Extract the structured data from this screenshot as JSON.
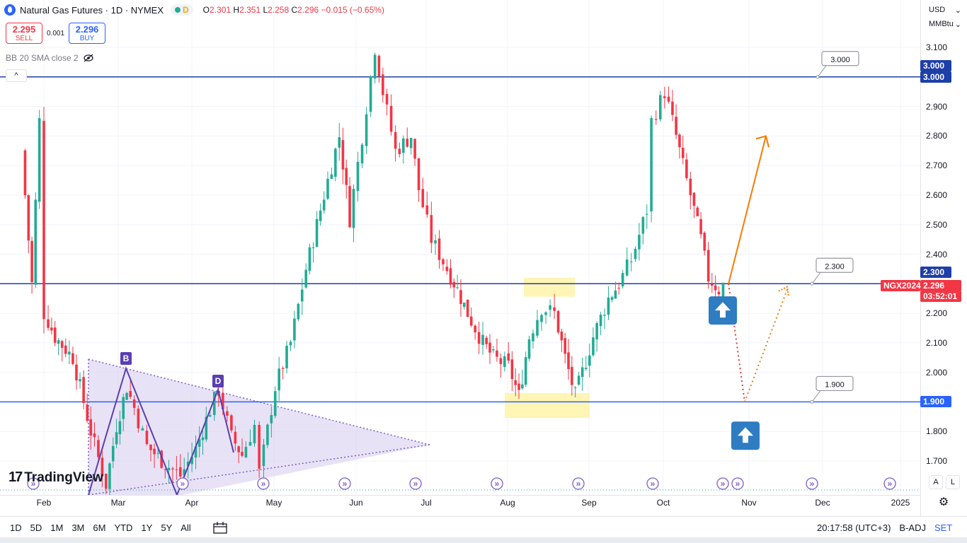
{
  "header": {
    "title": "Natural Gas Futures · 1D · NYMEX",
    "session_letter": "D",
    "ohlc": {
      "o_label": "O",
      "o": "2.301",
      "h_label": "H",
      "h": "2.351",
      "l_label": "L",
      "l": "2.258",
      "c_label": "C",
      "c": "2.296",
      "change": "−0.015 (−0.65%)"
    }
  },
  "trade": {
    "sell_price": "2.295",
    "sell_label": "SELL",
    "spread": "0.001",
    "buy_price": "2.296",
    "buy_label": "BUY"
  },
  "indicator": {
    "label": "BB 20 SMA close 2"
  },
  "collapse_label": "^",
  "logo": {
    "mark": "17",
    "text": "TradingView"
  },
  "right_panel": {
    "currency": "USD",
    "unit": "MMBtu"
  },
  "price_scale": {
    "ticks": [
      "3.100",
      "3.000",
      "2.900",
      "2.800",
      "2.700",
      "2.600",
      "2.500",
      "2.400",
      "2.300",
      "2.200",
      "2.100",
      "2.000",
      "1.900",
      "1.800",
      "1.700"
    ],
    "tag_3000": "3.000",
    "tag_3000b": "3.000",
    "tag_2300": "2.300",
    "tag_price": "2.296",
    "tag_time": "03:52:01",
    "tag_symbol": "NGX2024",
    "tag_1900": "1.900"
  },
  "time_axis": [
    "Feb",
    "Mar",
    "Apr",
    "May",
    "Jun",
    "Jul",
    "Aug",
    "Sep",
    "Oct",
    "Nov",
    "Dec",
    "2025"
  ],
  "bottom_bar": {
    "timeframes": [
      "1D",
      "5D",
      "1M",
      "3M",
      "6M",
      "YTD",
      "1Y",
      "5Y",
      "All"
    ],
    "clock": "20:17:58 (UTC+3)",
    "adj": "B-ADJ",
    "set": "SET"
  },
  "scale_buttons": {
    "a": "A",
    "l": "L"
  },
  "annotations": {
    "pattern_b": "B",
    "pattern_d": "D",
    "level_3000": "3.000",
    "level_2300": "2.300",
    "level_1900": "1.900"
  },
  "colors": {
    "up": "#22ab94",
    "down": "#f23645",
    "level": "#1e3fa8",
    "accent": "#2962ff",
    "orange": "#f57c00",
    "highlight": "#fff3a8",
    "triangle": "#d9cff0"
  },
  "chart_data": {
    "type": "candlestick",
    "symbol": "NGX2024",
    "timeframe": "1D",
    "ylim": [
      1.65,
      3.15
    ],
    "x_months": [
      "Feb",
      "Mar",
      "Apr",
      "May",
      "Jun",
      "Jul",
      "Aug",
      "Sep",
      "Oct",
      "Nov",
      "Dec",
      "2025"
    ],
    "horizontal_levels": [
      3.0,
      2.3,
      1.9
    ],
    "ohlc_path": [
      [
        "Jan 24",
        2.75
      ],
      [
        "Jan 28",
        2.3
      ],
      [
        "Jan 31",
        2.85
      ],
      [
        "Feb 2",
        2.2
      ],
      [
        "Feb 6",
        2.12
      ],
      [
        "Feb 13",
        2.05
      ],
      [
        "Feb 20",
        1.8
      ],
      [
        "Feb 26",
        1.62
      ],
      [
        "Mar 1",
        1.82
      ],
      [
        "Mar 5",
        1.95
      ],
      [
        "Mar 8",
        1.88
      ],
      [
        "Mar 13",
        1.75
      ],
      [
        "Mar 20",
        1.69
      ],
      [
        "Mar 26",
        1.65
      ],
      [
        "Apr 1",
        1.74
      ],
      [
        "Apr 5",
        1.84
      ],
      [
        "Apr 10",
        1.94
      ],
      [
        "Apr 15",
        1.78
      ],
      [
        "Apr 19",
        1.72
      ],
      [
        "Apr 24",
        1.82
      ],
      [
        "Apr 26",
        1.66
      ],
      [
        "May 2",
        1.95
      ],
      [
        "May 8",
        2.1
      ],
      [
        "May 14",
        2.35
      ],
      [
        "May 21",
        2.6
      ],
      [
        "May 27",
        2.8
      ],
      [
        "May 31",
        2.52
      ],
      [
        "Jun 5",
        2.8
      ],
      [
        "Jun 10",
        3.1
      ],
      [
        "Jun 13",
        2.95
      ],
      [
        "Jun 18",
        2.75
      ],
      [
        "Jun 24",
        2.8
      ],
      [
        "Jun 27",
        2.62
      ],
      [
        "Jul 2",
        2.45
      ],
      [
        "Jul 8",
        2.35
      ],
      [
        "Jul 12",
        2.28
      ],
      [
        "Jul 16",
        2.2
      ],
      [
        "Jul 22",
        2.1
      ],
      [
        "Jul 26",
        2.05
      ],
      [
        "Aug 1",
        2.02
      ],
      [
        "Aug 5",
        1.92
      ],
      [
        "Aug 9",
        2.12
      ],
      [
        "Aug 14",
        2.22
      ],
      [
        "Aug 19",
        2.2
      ],
      [
        "Aug 23",
        2.05
      ],
      [
        "Aug 27",
        1.92
      ],
      [
        "Sep 3",
        2.12
      ],
      [
        "Sep 9",
        2.25
      ],
      [
        "Sep 13",
        2.3
      ],
      [
        "Sep 18",
        2.38
      ],
      [
        "Sep 24",
        2.55
      ],
      [
        "Sep 26",
        2.85
      ],
      [
        "Oct 1",
        2.95
      ],
      [
        "Oct 4",
        2.85
      ],
      [
        "Oct 8",
        2.7
      ],
      [
        "Oct 11",
        2.6
      ],
      [
        "Oct 15",
        2.45
      ],
      [
        "Oct 18",
        2.32
      ],
      [
        "Oct 22",
        2.28
      ],
      [
        "Oct 24",
        2.296
      ]
    ],
    "annotations": [
      {
        "type": "triangle_pattern",
        "points": [
          "B",
          "D"
        ]
      },
      {
        "type": "zone",
        "range": [
          2.28,
          2.32
        ],
        "period": "Aug"
      },
      {
        "type": "zone",
        "range": [
          1.87,
          1.93
        ],
        "period": "Aug"
      },
      {
        "type": "scenario_bullish",
        "from": 2.3,
        "to": 2.8,
        "style": "solid"
      },
      {
        "type": "scenario_alt",
        "from": 2.3,
        "via": 1.9,
        "to": 2.3,
        "style": "dotted"
      },
      {
        "type": "arrow_up",
        "level": 2.2
      },
      {
        "type": "arrow_up",
        "level": 1.8
      }
    ]
  }
}
